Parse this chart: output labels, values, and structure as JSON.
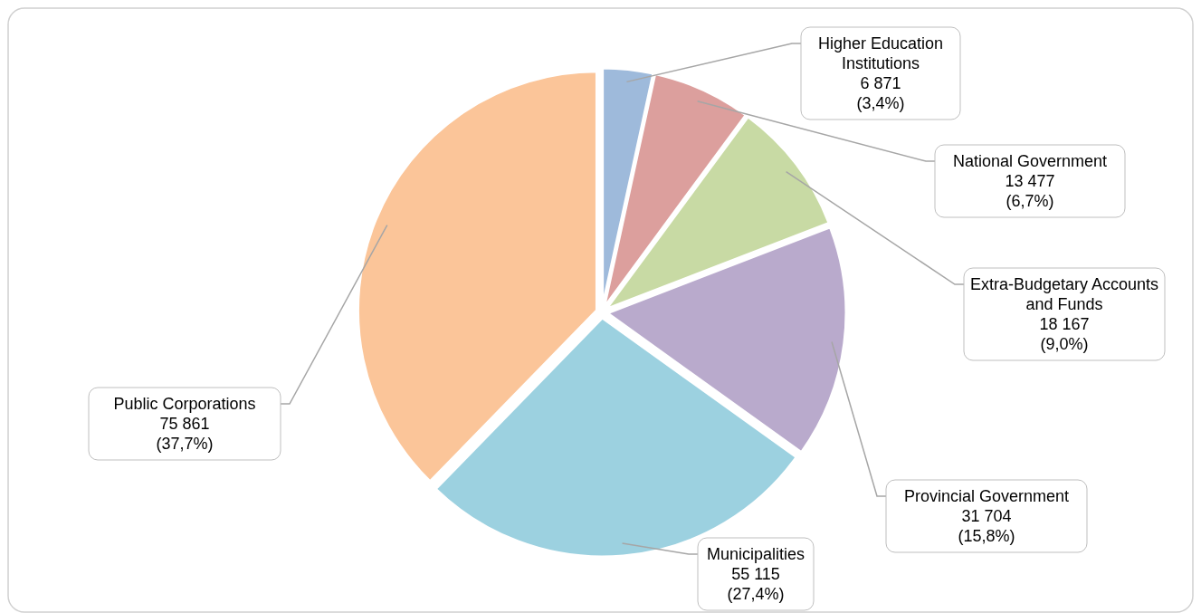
{
  "chart_data": {
    "type": "pie",
    "categories": [
      "Higher Education Institutions",
      "National Government",
      "Extra-Budgetary Accounts and Funds",
      "Provincial Government",
      "Municipalities",
      "Public Corporations"
    ],
    "values": [
      6871,
      13477,
      18167,
      31704,
      55115,
      75861
    ],
    "value_labels": [
      "6 871\n(3,4%)",
      "13 477\n(6,7%)",
      "18 167\n(9,0%)",
      "31 704\n(15,8%)",
      "55 115\n(27,4%)",
      "75 861\n(37,7%)"
    ],
    "colors": [
      "#4f81bd",
      "#c0504d",
      "#9bbb59",
      "#8064a2",
      "#4bacc6",
      "#f79646"
    ]
  }
}
